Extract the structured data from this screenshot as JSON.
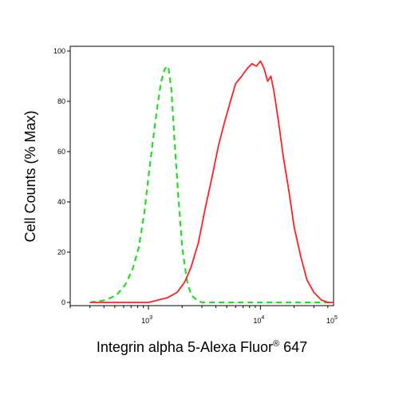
{
  "chart_data": {
    "type": "line",
    "xlabel": "Integrin alpha 5-Alexa Fluor",
    "xlabel_superscript": "®",
    "xlabel_suffix": " 647",
    "ylabel": "Cell Counts (% Max)",
    "x_scale": "log",
    "xlim": [
      200,
      45000
    ],
    "ylim": [
      0,
      100
    ],
    "y_ticks": [
      0,
      20,
      40,
      60,
      80,
      100
    ],
    "y_tick_labels": [
      "0",
      "20",
      "40",
      "60",
      "80",
      "100"
    ],
    "x_ticks": [
      {
        "value": 1000,
        "base": "10",
        "exp": "3"
      },
      {
        "value": 10000,
        "base": "10",
        "exp": "4"
      },
      {
        "value": 100000,
        "base": "10",
        "exp": "5"
      }
    ],
    "grid": false,
    "legend": "none",
    "series": [
      {
        "color": "#22dd22",
        "style": "dashed",
        "x": [
          300,
          420,
          520,
          620,
          720,
          820,
          920,
          1000,
          1100,
          1200,
          1300,
          1400,
          1500,
          1600,
          1700,
          1850,
          2000,
          2200,
          2400,
          2700,
          3000,
          4000,
          6000,
          10000,
          20000,
          45000
        ],
        "y": [
          0,
          1,
          3,
          7,
          13,
          22,
          36,
          50,
          65,
          78,
          88,
          93,
          94,
          85,
          66,
          42,
          22,
          9,
          3,
          1,
          0,
          0,
          0,
          0,
          0,
          0
        ]
      },
      {
        "color": "#ff2020",
        "style": "solid",
        "x": [
          300,
          1000,
          1500,
          1800,
          2100,
          2400,
          2800,
          3200,
          3700,
          4200,
          4800,
          5400,
          6000,
          6800,
          7600,
          8400,
          9200,
          10000,
          10800,
          11600,
          12400,
          13200,
          14500,
          16000,
          18000,
          20000,
          23000,
          26000,
          30000,
          35000,
          40000,
          45000
        ],
        "y": [
          0,
          0,
          2,
          4,
          8,
          14,
          24,
          37,
          50,
          62,
          72,
          80,
          87,
          90,
          93,
          95,
          94,
          96,
          93,
          88,
          90,
          84,
          72,
          58,
          44,
          30,
          18,
          9,
          4,
          1,
          0,
          0
        ]
      }
    ]
  }
}
